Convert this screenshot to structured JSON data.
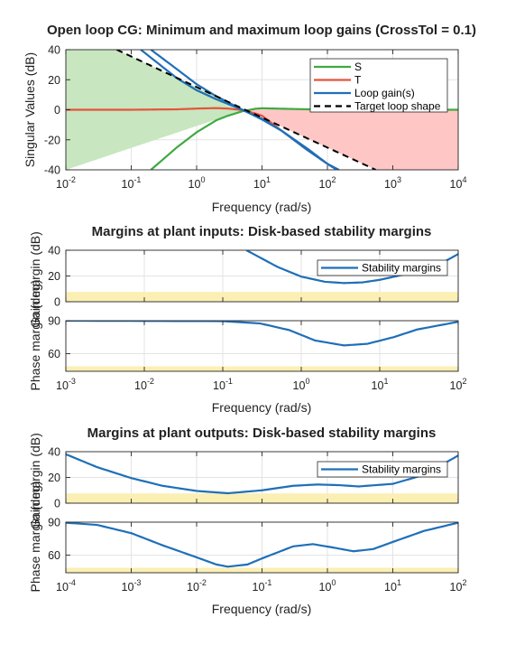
{
  "chart_data": [
    {
      "type": "line",
      "title": "Open loop CG: Minimum and maximum loop gains (CrossTol = 0.1)",
      "xlabel": "Frequency (rad/s)",
      "ylabel": "Singular Values (dB)",
      "xscale": "log",
      "xlim": [
        0.01,
        10000
      ],
      "ylim": [
        -40,
        40
      ],
      "yticks": [
        40,
        20,
        0,
        -20,
        -40
      ],
      "xticks": [
        {
          "base": "10",
          "exp": "-2"
        },
        {
          "base": "10",
          "exp": "-1"
        },
        {
          "base": "10",
          "exp": "0"
        },
        {
          "base": "10",
          "exp": "1"
        },
        {
          "base": "10",
          "exp": "2"
        },
        {
          "base": "10",
          "exp": "3"
        },
        {
          "base": "10",
          "exp": "4"
        }
      ],
      "grid": true,
      "legend_position": "top-right",
      "legend": [
        "S",
        "T",
        "Loop gain(s)",
        "Target loop shape"
      ],
      "shaded_regions": [
        {
          "name": "low-frequency allowed region",
          "color": "#c8e6c0",
          "x": [
            0.01,
            0.06,
            5.5,
            0.01
          ],
          "y": [
            40,
            40,
            0,
            -40
          ]
        },
        {
          "name": "high-frequency allowed region",
          "color": "#ffc6c6",
          "x": [
            5.5,
            10000,
            10000,
            550
          ],
          "y": [
            0,
            0,
            -40,
            -40
          ]
        }
      ],
      "series": [
        {
          "name": "S",
          "color": "#3faa3f",
          "style": "solid",
          "x": [
            0.2,
            0.5,
            1,
            2,
            3,
            5,
            8,
            10,
            20,
            50,
            100,
            1000,
            10000
          ],
          "y": [
            -40,
            -25,
            -15,
            -7,
            -4,
            -1,
            0.7,
            1,
            0.7,
            0.3,
            0.1,
            0,
            0
          ]
        },
        {
          "name": "T",
          "color": "#e5533d",
          "style": "solid",
          "x": [
            0.01,
            0.1,
            0.5,
            1,
            2,
            3,
            5,
            8,
            10,
            20,
            50,
            100,
            140
          ],
          "y": [
            0,
            0,
            0.3,
            0.8,
            1.1,
            0.8,
            -0.2,
            -2.5,
            -4,
            -14,
            -27,
            -36,
            -40
          ]
        },
        {
          "name": "Loop gain(s)",
          "color": "#1f6fb8",
          "style": "solid",
          "x": [
            0.2,
            0.5,
            1,
            2,
            5,
            10,
            20,
            50,
            100,
            140
          ],
          "y": [
            40,
            27,
            17,
            9,
            0,
            -6.5,
            -14,
            -26,
            -36,
            -40
          ]
        },
        {
          "name": "Loop gain(s)",
          "color": "#1f6fb8",
          "style": "solid",
          "x": [
            0.14,
            0.5,
            1,
            2,
            5,
            10,
            20,
            50,
            100,
            150
          ],
          "y": [
            40,
            21,
            13,
            7,
            0,
            -6,
            -14,
            -27,
            -36,
            -40
          ]
        },
        {
          "name": "Target loop shape",
          "color": "#000000",
          "style": "dashed",
          "x": [
            0.06,
            5.5,
            550
          ],
          "y": [
            40,
            0,
            -40
          ]
        }
      ]
    },
    {
      "type": "line",
      "title": "Margins at plant inputs: Disk-based stability margins",
      "xlabel": "Frequency (rad/s)",
      "xscale": "log",
      "xlim": [
        0.001,
        100
      ],
      "xticks": [
        {
          "base": "10",
          "exp": "-3"
        },
        {
          "base": "10",
          "exp": "-2"
        },
        {
          "base": "10",
          "exp": "-1"
        },
        {
          "base": "10",
          "exp": "0"
        },
        {
          "base": "10",
          "exp": "1"
        },
        {
          "base": "10",
          "exp": "2"
        }
      ],
      "legend": [
        "Stability margins"
      ],
      "legend_position": "top-right",
      "grid": true,
      "gain_panel": {
        "ylabel": "Gain margin (dB)",
        "ylim": [
          0,
          40
        ],
        "yticks": [
          40,
          20,
          0
        ],
        "band": {
          "y": [
            0,
            7.6
          ],
          "color": "#fbefb4"
        },
        "series": [
          {
            "name": "Stability margins",
            "color": "#1f6fb8",
            "x": [
              0.2,
              0.5,
              1,
              2,
              3.5,
              6,
              10,
              20,
              50,
              100
            ],
            "y": [
              40,
              27,
              19.5,
              15.5,
              14.5,
              15,
              17,
              21,
              27,
              37
            ]
          }
        ]
      },
      "phase_panel": {
        "ylabel": "Phase margin (deg)",
        "ylim": [
          44,
          90
        ],
        "yticks": [
          90,
          60
        ],
        "band": {
          "y": [
            44,
            48.5
          ],
          "color": "#fbefb4"
        },
        "series": [
          {
            "name": "Stability margins",
            "color": "#1f6fb8",
            "x": [
              0.001,
              0.1,
              0.3,
              0.7,
              1.5,
              3.5,
              7,
              15,
              30,
              100
            ],
            "y": [
              90,
              89.6,
              87.5,
              81.5,
              72,
              67.5,
              69,
              75,
              82,
              89
            ]
          }
        ]
      }
    },
    {
      "type": "line",
      "title": "Margins at plant outputs: Disk-based stability margins",
      "xlabel": "Frequency (rad/s)",
      "xscale": "log",
      "xlim": [
        0.0001,
        100
      ],
      "xticks": [
        {
          "base": "10",
          "exp": "-4"
        },
        {
          "base": "10",
          "exp": "-3"
        },
        {
          "base": "10",
          "exp": "-2"
        },
        {
          "base": "10",
          "exp": "-1"
        },
        {
          "base": "10",
          "exp": "0"
        },
        {
          "base": "10",
          "exp": "1"
        },
        {
          "base": "10",
          "exp": "2"
        }
      ],
      "legend": [
        "Stability margins"
      ],
      "legend_position": "top-right",
      "grid": true,
      "gain_panel": {
        "ylabel": "Gain margin (dB)",
        "ylim": [
          0,
          40
        ],
        "yticks": [
          40,
          20,
          0
        ],
        "band": {
          "y": [
            0,
            7.6
          ],
          "color": "#fbefb4"
        },
        "series": [
          {
            "name": "Stability margins",
            "color": "#1f6fb8",
            "x": [
              0.0001,
              0.0003,
              0.001,
              0.003,
              0.01,
              0.03,
              0.1,
              0.3,
              0.7,
              1.5,
              3,
              10,
              30,
              100
            ],
            "y": [
              38,
              28,
              19.5,
              13.5,
              9.5,
              7.7,
              10,
              13.5,
              14.5,
              14,
              13,
              15,
              22,
              37
            ]
          }
        ]
      },
      "phase_panel": {
        "ylabel": "Phase margin (deg)",
        "ylim": [
          44,
          90
        ],
        "yticks": [
          90,
          60
        ],
        "band": {
          "y": [
            44,
            48.5
          ],
          "color": "#fbefb4"
        },
        "series": [
          {
            "name": "Stability margins",
            "color": "#1f6fb8",
            "x": [
              0.0001,
              0.0003,
              0.001,
              0.003,
              0.01,
              0.02,
              0.03,
              0.06,
              0.1,
              0.3,
              0.6,
              1.2,
              2.5,
              5,
              10,
              30,
              100
            ],
            "y": [
              89.5,
              87.5,
              80,
              69,
              58,
              51.5,
              49.5,
              51.5,
              57,
              68,
              70,
              67,
              63.5,
              65.5,
              72,
              82,
              89.5
            ]
          }
        ]
      }
    }
  ]
}
